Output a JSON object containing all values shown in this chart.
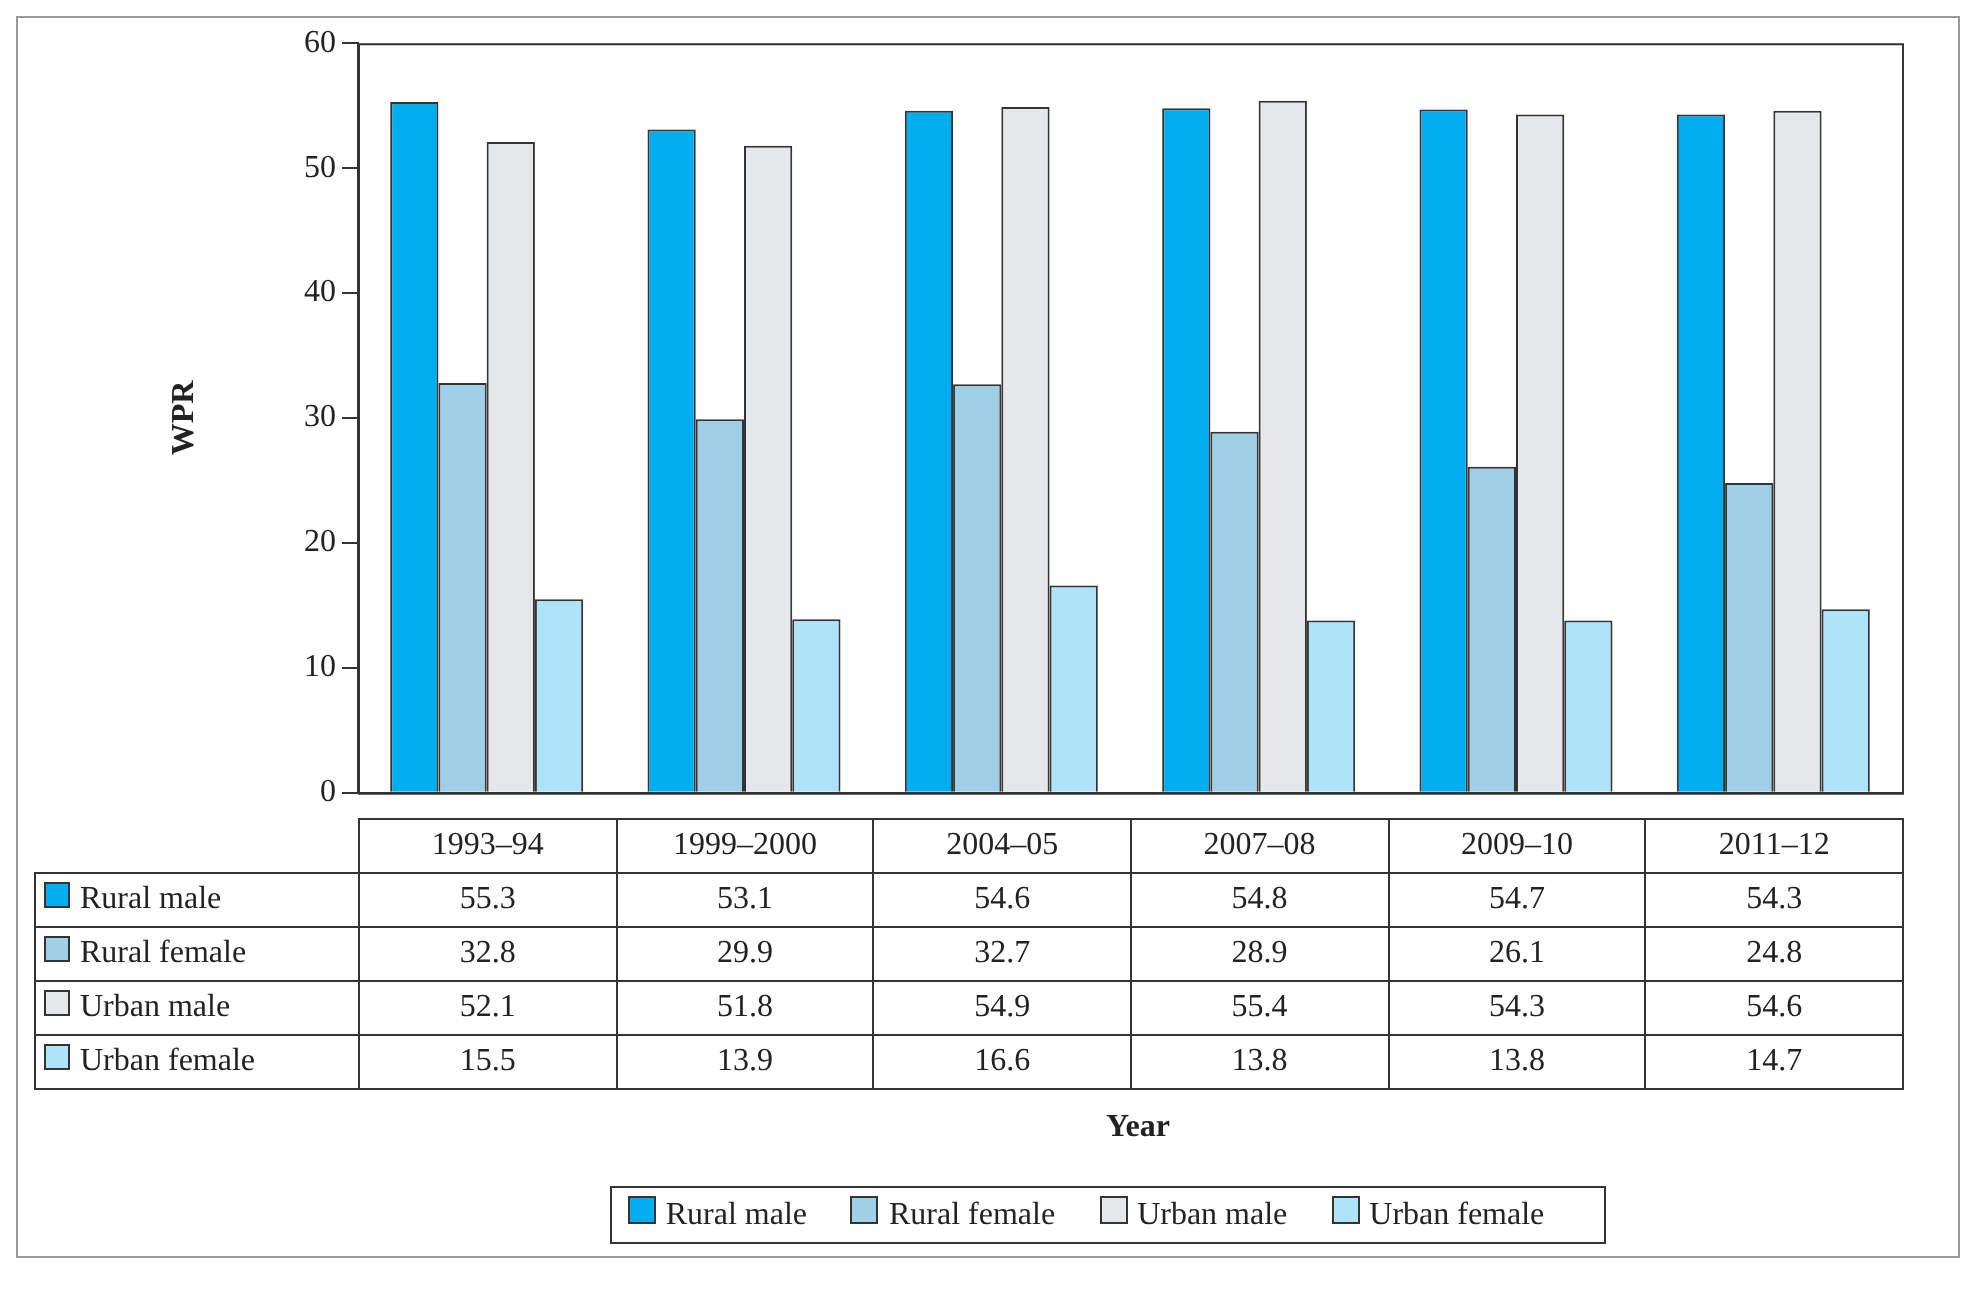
{
  "chart_data": {
    "type": "bar",
    "categories": [
      "1993–94",
      "1999–2000",
      "2004–05",
      "2007–08",
      "2009–10",
      "2011–12"
    ],
    "series": [
      {
        "name": "Rural male",
        "color": "#00aeef",
        "values": [
          55.3,
          53.1,
          54.6,
          54.8,
          54.7,
          54.3
        ]
      },
      {
        "name": "Rural female",
        "color": "#9fcfe6",
        "values": [
          32.8,
          29.9,
          32.7,
          28.9,
          26.1,
          24.8
        ]
      },
      {
        "name": "Urban male",
        "color": "#e6e7e9",
        "values": [
          52.1,
          51.8,
          54.9,
          55.4,
          54.3,
          54.6
        ]
      },
      {
        "name": "Urban female",
        "color": "#aee3fa",
        "values": [
          15.5,
          13.9,
          16.6,
          13.8,
          13.8,
          14.7
        ]
      }
    ],
    "ylim": [
      0,
      60
    ],
    "yticks": [
      0,
      10,
      20,
      30,
      40,
      50,
      60
    ],
    "ylabel": "WPR",
    "annotations": [
      "Year"
    ],
    "grid": false,
    "legend": "bottom",
    "data_labels": true
  }
}
